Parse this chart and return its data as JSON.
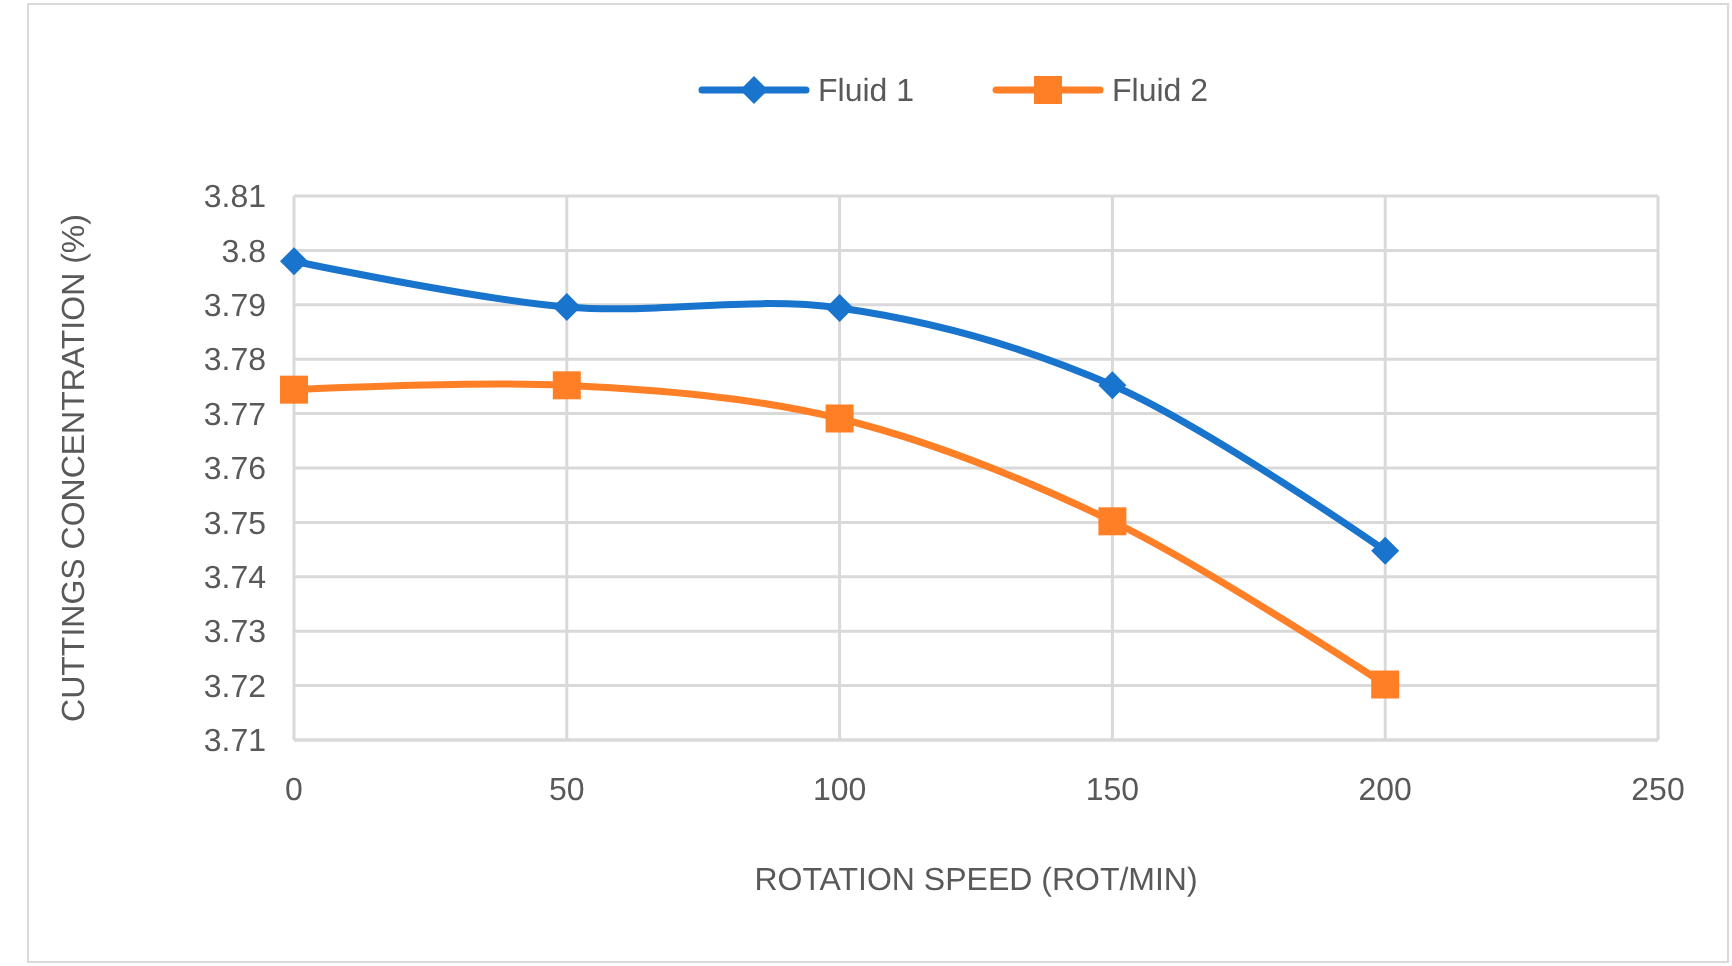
{
  "chart_data": {
    "type": "line",
    "xlabel": "ROTATION SPEED (ROT/MIN)",
    "ylabel": "CUTTINGS CONCENTRATION (%)",
    "x": [
      0,
      50,
      100,
      150,
      200
    ],
    "series": [
      {
        "name": "Fluid 1",
        "color": "#1874cd",
        "values": [
          3.798,
          3.7896,
          3.7894,
          3.7752,
          3.7448
        ],
        "marker": "diamond"
      },
      {
        "name": "Fluid 2",
        "color": "#ff7f27",
        "values": [
          3.7744,
          3.7752,
          3.7691,
          3.7502,
          3.7202
        ],
        "marker": "square"
      }
    ],
    "xlim": [
      0,
      250
    ],
    "xticks": [
      0,
      50,
      100,
      150,
      200,
      250
    ],
    "ylim": [
      3.71,
      3.81
    ],
    "yticks": [
      3.71,
      3.72,
      3.73,
      3.74,
      3.75,
      3.76,
      3.77,
      3.78,
      3.79,
      {
        "value": 3.8,
        "label": "3.8"
      },
      3.81
    ],
    "grid": true,
    "legend": "top",
    "line_style": "solid"
  }
}
